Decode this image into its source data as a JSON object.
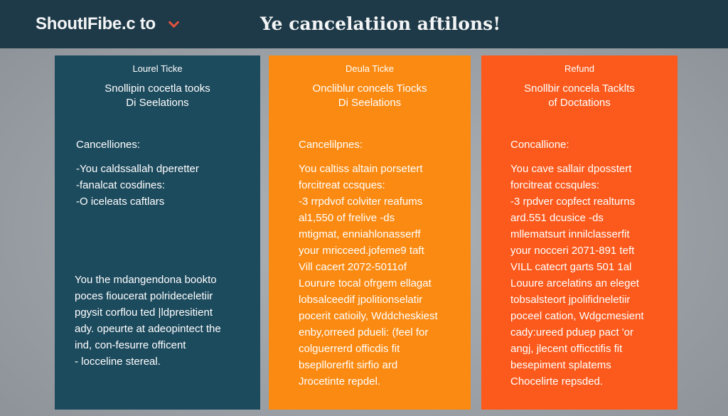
{
  "header": {
    "brand": "ShoutIFibe.c to",
    "headline": "Ye cancelatiion aftilons!"
  },
  "panels": [
    {
      "label": "Lourel Ticke",
      "subtitle": [
        "Snollipin cocetla tooks",
        "Di Seelations"
      ],
      "heading": "Cancelliones:",
      "lines": [
        "-You caldssallah dperetter",
        "-fanalcat cosdines:",
        "-O iceleats caftlars"
      ],
      "bottom_lines": [
        "You the mdangendona bookto",
        "poces fioucerat polrideceletiir",
        "pgysit corflou ted |ldpresitient",
        "ady. opeurte at adeopintect the",
        "ind, con-fesurre officent",
        "- locceline stereal."
      ]
    },
    {
      "label": "Deula Ticke",
      "subtitle": [
        "Oncliblur concels Tiocks",
        "Di Seelations"
      ],
      "heading": "Cancelilpnes:",
      "lines": [
        "You caltiss altain porsetert",
        "forcitreat ccsques:",
        "-3 rrpdvof colviter reafums",
        "al1,550 of frelive -ds",
        "mtigmat, enniahlonasserff",
        "your mricceed.jofeme9 taft",
        "Vill cacert 2072-5011of",
        "Lourure tocal ofrgem ellagat",
        "lobsalceedif jpolitionselatir",
        "pocerit catioily, Wddcheskiest",
        "enby,orreed pdueli: (feel for",
        "colguerrerd officdis fit",
        "bsepllorerfit sirfio ard",
        "Jrocetinte repdel."
      ]
    },
    {
      "label": "Refund",
      "subtitle": [
        "Snollbir concela Tacklts",
        "of Doctations"
      ],
      "heading": "Concallione:",
      "lines": [
        "You cave sallair dposstert",
        "forcitreat ccsqules:",
        "-3 rpdver copfect realturns",
        "ard.551 dcusice -ds",
        "mllematsurt innilclasserfit",
        "your nocceri 2071-891 teft",
        "VILL catecrt garts 501 1al",
        "Louure arcelatins an eleget",
        "tobsalsteort jpolifidneletiir",
        "poceel cation, Wdgcmesient",
        "cady:ureed pduep pact 'or",
        "angj, jlecent officctifis fit",
        "besepiment splatems",
        "Chocelirte repsded."
      ]
    }
  ]
}
